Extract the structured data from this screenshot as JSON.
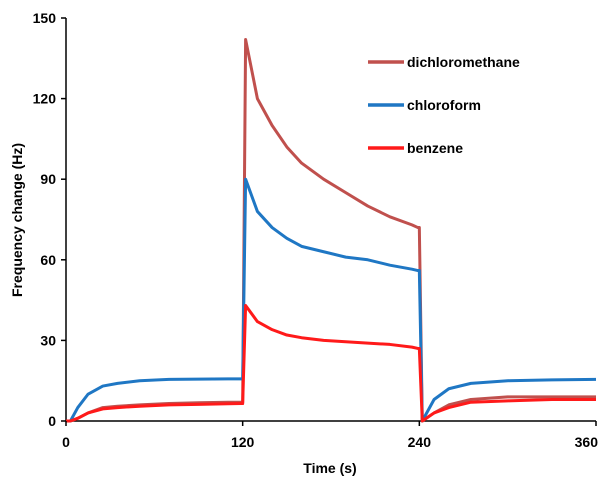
{
  "chart_data": {
    "type": "line",
    "title": "",
    "xlabel": "Time (s)",
    "ylabel": "Frequency change (Hz)",
    "xlim": [
      0,
      360
    ],
    "ylim": [
      0,
      150
    ],
    "x_ticks": [
      "0",
      "120",
      "240",
      "360"
    ],
    "y_ticks": [
      "0",
      "30",
      "60",
      "90",
      "120",
      "150"
    ],
    "grid": false,
    "legend_position": "top-right",
    "series": [
      {
        "name": "dichloromethane",
        "color": "#c0504d",
        "x": [
          0,
          3,
          8,
          15,
          25,
          35,
          50,
          70,
          90,
          110,
          119,
          120,
          122,
          130,
          140,
          150,
          160,
          175,
          190,
          205,
          220,
          235,
          239,
          240,
          242,
          250,
          260,
          275,
          300,
          330,
          360
        ],
        "y": [
          0,
          0,
          1,
          3,
          5,
          5.5,
          6,
          6.5,
          6.8,
          7,
          7,
          7,
          142,
          120,
          110,
          102,
          96,
          90,
          85,
          80,
          76,
          73,
          72,
          72,
          0,
          3,
          6,
          8,
          9,
          9,
          9
        ]
      },
      {
        "name": "chloroform",
        "color": "#1f77c4",
        "x": [
          0,
          3,
          8,
          15,
          25,
          35,
          50,
          70,
          90,
          110,
          119,
          120,
          122,
          130,
          140,
          150,
          160,
          175,
          190,
          205,
          220,
          235,
          239,
          240,
          242,
          250,
          260,
          275,
          300,
          330,
          360
        ],
        "y": [
          0,
          0,
          5,
          10,
          13,
          14,
          15,
          15.5,
          15.6,
          15.7,
          15.7,
          15.7,
          90,
          78,
          72,
          68,
          65,
          63,
          61,
          60,
          58,
          56.5,
          56,
          56,
          0,
          8,
          12,
          14,
          15,
          15.3,
          15.5
        ]
      },
      {
        "name": "benzene",
        "color": "#ff1a1a",
        "x": [
          0,
          3,
          8,
          15,
          25,
          35,
          50,
          70,
          90,
          110,
          119,
          120,
          122,
          130,
          140,
          150,
          160,
          175,
          190,
          205,
          220,
          235,
          239,
          240,
          242,
          250,
          260,
          275,
          300,
          330,
          360
        ],
        "y": [
          0,
          0,
          1,
          3,
          4.5,
          5,
          5.5,
          6,
          6.2,
          6.4,
          6.5,
          6.5,
          43,
          37,
          34,
          32,
          31,
          30,
          29.5,
          29,
          28.5,
          27.5,
          27,
          27,
          0,
          3,
          5,
          7,
          7.5,
          8,
          8
        ]
      }
    ]
  }
}
